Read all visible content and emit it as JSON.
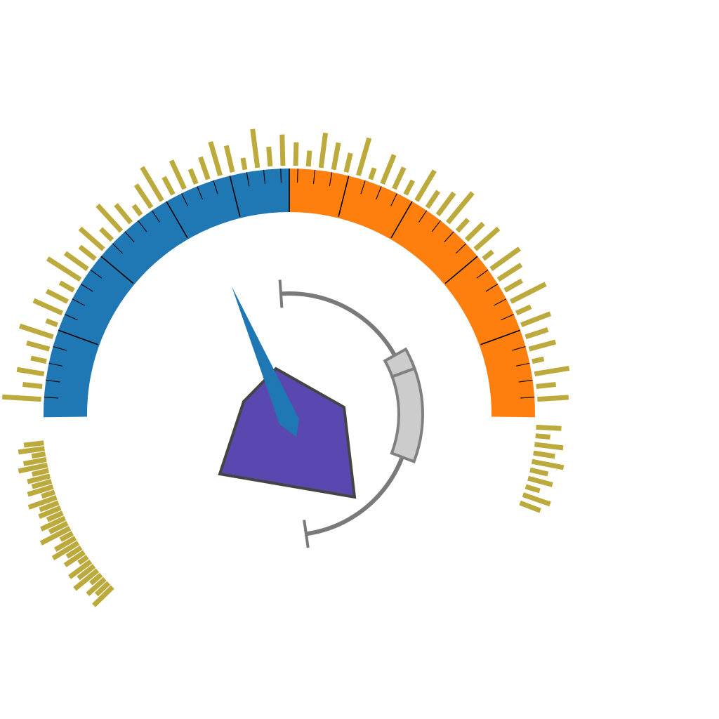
{
  "colors": {
    "left_band": "#1f77b4",
    "right_band": "#ff7f0e",
    "major_tick": "#000000",
    "spikes": "#bcaa3c",
    "needle": "#1f77b4",
    "polygon_fill": "#5a48b0",
    "polygon_stroke": "#444444",
    "inner_arc": "#7a7a7a",
    "inner_box_fill": "#cccccc",
    "inner_box_stroke": "#808080"
  },
  "gauge": {
    "band_split_fraction": 0.5,
    "needle_direction_deg": -26,
    "inner_range_fraction": [
      0.3,
      0.55
    ]
  },
  "spikes_outer": [
    0.9,
    0.4,
    0.6,
    0.3,
    0.5,
    0.8,
    0.2,
    0.7,
    0.5,
    0.3,
    0.9,
    0.6,
    0.4,
    0.7,
    0.3,
    0.8,
    0.5,
    0.2,
    0.6,
    0.9,
    0.4,
    0.7,
    0.3,
    0.5,
    0.8,
    0.6,
    0.2,
    0.9,
    0.4,
    0.7,
    0.5,
    0.3,
    0.8,
    0.6,
    0.4,
    0.9,
    0.2,
    0.7,
    0.5,
    0.3,
    0.8,
    0.4,
    0.6,
    0.9,
    0.3,
    0.5,
    0.7,
    0.2,
    0.8,
    0.6,
    0.4,
    0.9,
    0.3,
    0.7,
    0.5,
    0.6,
    0.2,
    0.8,
    0.4,
    0.7
  ],
  "spikes_lower_left": [
    0.5,
    0.7,
    0.3,
    0.6,
    0.8,
    0.4,
    0.6,
    0.5,
    0.7,
    0.3,
    0.8,
    0.5,
    0.6,
    0.4,
    0.7,
    0.5,
    0.9,
    0.3,
    0.6,
    0.8,
    0.4,
    0.6,
    0.2,
    0.7,
    0.5,
    0.8,
    0.3,
    0.6,
    0.4,
    0.7
  ],
  "spikes_right_tail": [
    0.6,
    0.3,
    0.7,
    0.5,
    0.8,
    0.4,
    0.6,
    0.3,
    0.7,
    0.5
  ]
}
